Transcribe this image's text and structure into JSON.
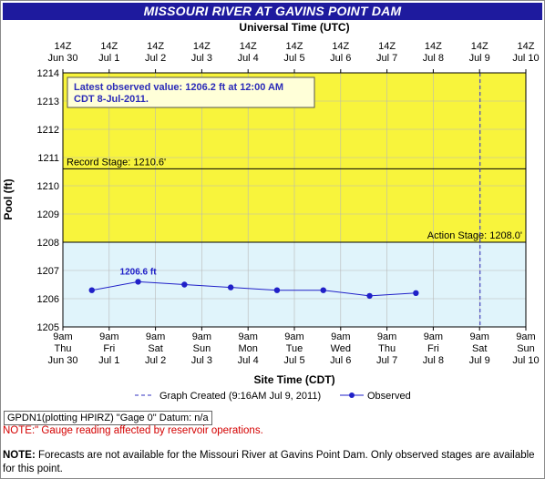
{
  "title": "MISSOURI RIVER AT GAVINS POINT DAM",
  "top_axis_title": "Universal Time (UTC)",
  "bottom_axis_title": "Site Time (CDT)",
  "y_axis_title": "Pool (ft)",
  "latest_observed": "Latest observed value: 1206.2 ft at 12:00 AM CDT 8-Jul-2011.",
  "legend": {
    "created": "Graph Created (9:16AM Jul 9, 2011)",
    "observed": "Observed"
  },
  "source_label": "GPDN1(plotting HPIRZ) \"Gage 0\" Datum: n/a",
  "note_gauge": "NOTE:\" Gauge reading affected by reservoir operations.",
  "note_forecast_label": "NOTE:",
  "note_forecast_text": " Forecasts are not available for the Missouri River at Gavins Point Dam. Only observed stages are available for this point.",
  "colors": {
    "title_bg": "#1e1a9e",
    "minor_band": "#e0f4fb",
    "record_band": "#f8f43c",
    "observed": "#2020c8",
    "created_line": "#3030c0"
  },
  "chart_data": {
    "type": "line",
    "ylim": [
      1205,
      1214
    ],
    "y_ticks": [
      1205,
      1206,
      1207,
      1208,
      1209,
      1210,
      1211,
      1212,
      1213,
      1214
    ],
    "top_ticks": [
      [
        "14Z",
        "Jun 30"
      ],
      [
        "14Z",
        "Jul 1"
      ],
      [
        "14Z",
        "Jul 2"
      ],
      [
        "14Z",
        "Jul 3"
      ],
      [
        "14Z",
        "Jul 4"
      ],
      [
        "14Z",
        "Jul 5"
      ],
      [
        "14Z",
        "Jul 6"
      ],
      [
        "14Z",
        "Jul 7"
      ],
      [
        "14Z",
        "Jul 8"
      ],
      [
        "14Z",
        "Jul 9"
      ],
      [
        "14Z",
        "Jul 10"
      ]
    ],
    "bottom_ticks": [
      [
        "9am",
        "Thu",
        "Jun 30"
      ],
      [
        "9am",
        "Fri",
        "Jul 1"
      ],
      [
        "9am",
        "Sat",
        "Jul 2"
      ],
      [
        "9am",
        "Sun",
        "Jul 3"
      ],
      [
        "9am",
        "Mon",
        "Jul 4"
      ],
      [
        "9am",
        "Tue",
        "Jul 5"
      ],
      [
        "9am",
        "Wed",
        "Jul 6"
      ],
      [
        "9am",
        "Thu",
        "Jul 7"
      ],
      [
        "9am",
        "Fri",
        "Jul 8"
      ],
      [
        "9am",
        "Sat",
        "Jul 9"
      ],
      [
        "9am",
        "Sun",
        "Jul 10"
      ]
    ],
    "x_range": [
      "2011-06-30 09:00",
      "2011-07-10 09:00"
    ],
    "series": [
      {
        "name": "Observed",
        "x": [
          "2011-07-01 00:00",
          "2011-07-02 00:00",
          "2011-07-03 00:00",
          "2011-07-04 00:00",
          "2011-07-05 00:00",
          "2011-07-06 00:00",
          "2011-07-07 00:00",
          "2011-07-08 00:00"
        ],
        "y": [
          1206.3,
          1206.6,
          1206.5,
          1206.4,
          1206.3,
          1206.3,
          1206.1,
          1206.2
        ],
        "labels": [
          "",
          "1206.6 ft",
          "",
          "",
          "",
          "",
          "",
          ""
        ]
      }
    ],
    "thresholds": [
      {
        "label": "Record Stage: 1210.6'",
        "value": 1210.6
      },
      {
        "label": "Action Stage: 1208.0'",
        "value": 1208.0
      }
    ],
    "created_marker": "2011-07-09 09:16"
  }
}
